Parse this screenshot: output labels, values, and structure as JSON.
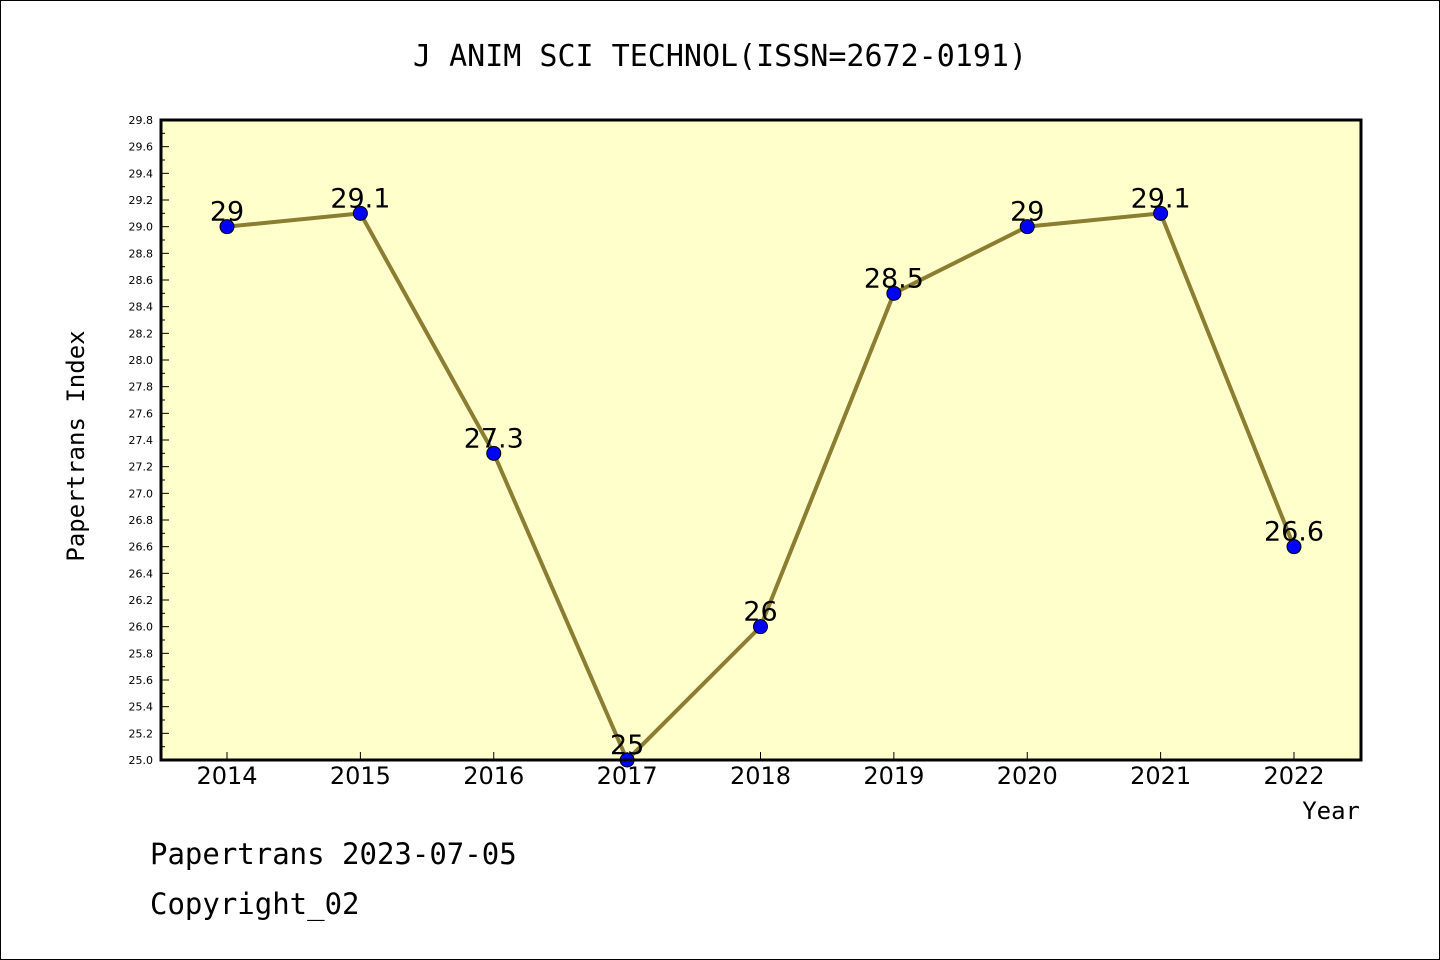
{
  "chart_data": {
    "type": "line",
    "title": "J ANIM SCI TECHNOL(ISSN=2672-0191)",
    "xlabel": "Year",
    "ylabel": "Papertrans Index",
    "categories": [
      "2014",
      "2015",
      "2016",
      "2017",
      "2018",
      "2019",
      "2020",
      "2021",
      "2022"
    ],
    "series": [
      {
        "values": [
          29.0,
          29.1,
          27.3,
          25.0,
          26.0,
          28.5,
          29.0,
          29.1,
          26.6
        ],
        "data_labels": [
          "29",
          "29.1",
          "27.3",
          "25",
          "26",
          "28.5",
          "29",
          "29.1",
          "26.6"
        ]
      }
    ],
    "ylim": [
      25.0,
      29.8
    ],
    "yticks": [
      "25.0",
      "25.2",
      "25.4",
      "25.6",
      "25.8",
      "26.0",
      "26.2",
      "26.4",
      "26.6",
      "26.8",
      "27.0",
      "27.2",
      "27.4",
      "27.6",
      "27.8",
      "28.0",
      "28.2",
      "28.4",
      "28.6",
      "28.8",
      "29.0",
      "29.2",
      "29.4",
      "29.6",
      "29.8"
    ],
    "grid": false,
    "legend": "none",
    "colors": {
      "plot_background": "#ffffcc",
      "line": "#8b7d32",
      "marker": "#0000ff"
    }
  },
  "footer": {
    "line1": "Papertrans 2023-07-05",
    "line2": "Copyright_02"
  }
}
